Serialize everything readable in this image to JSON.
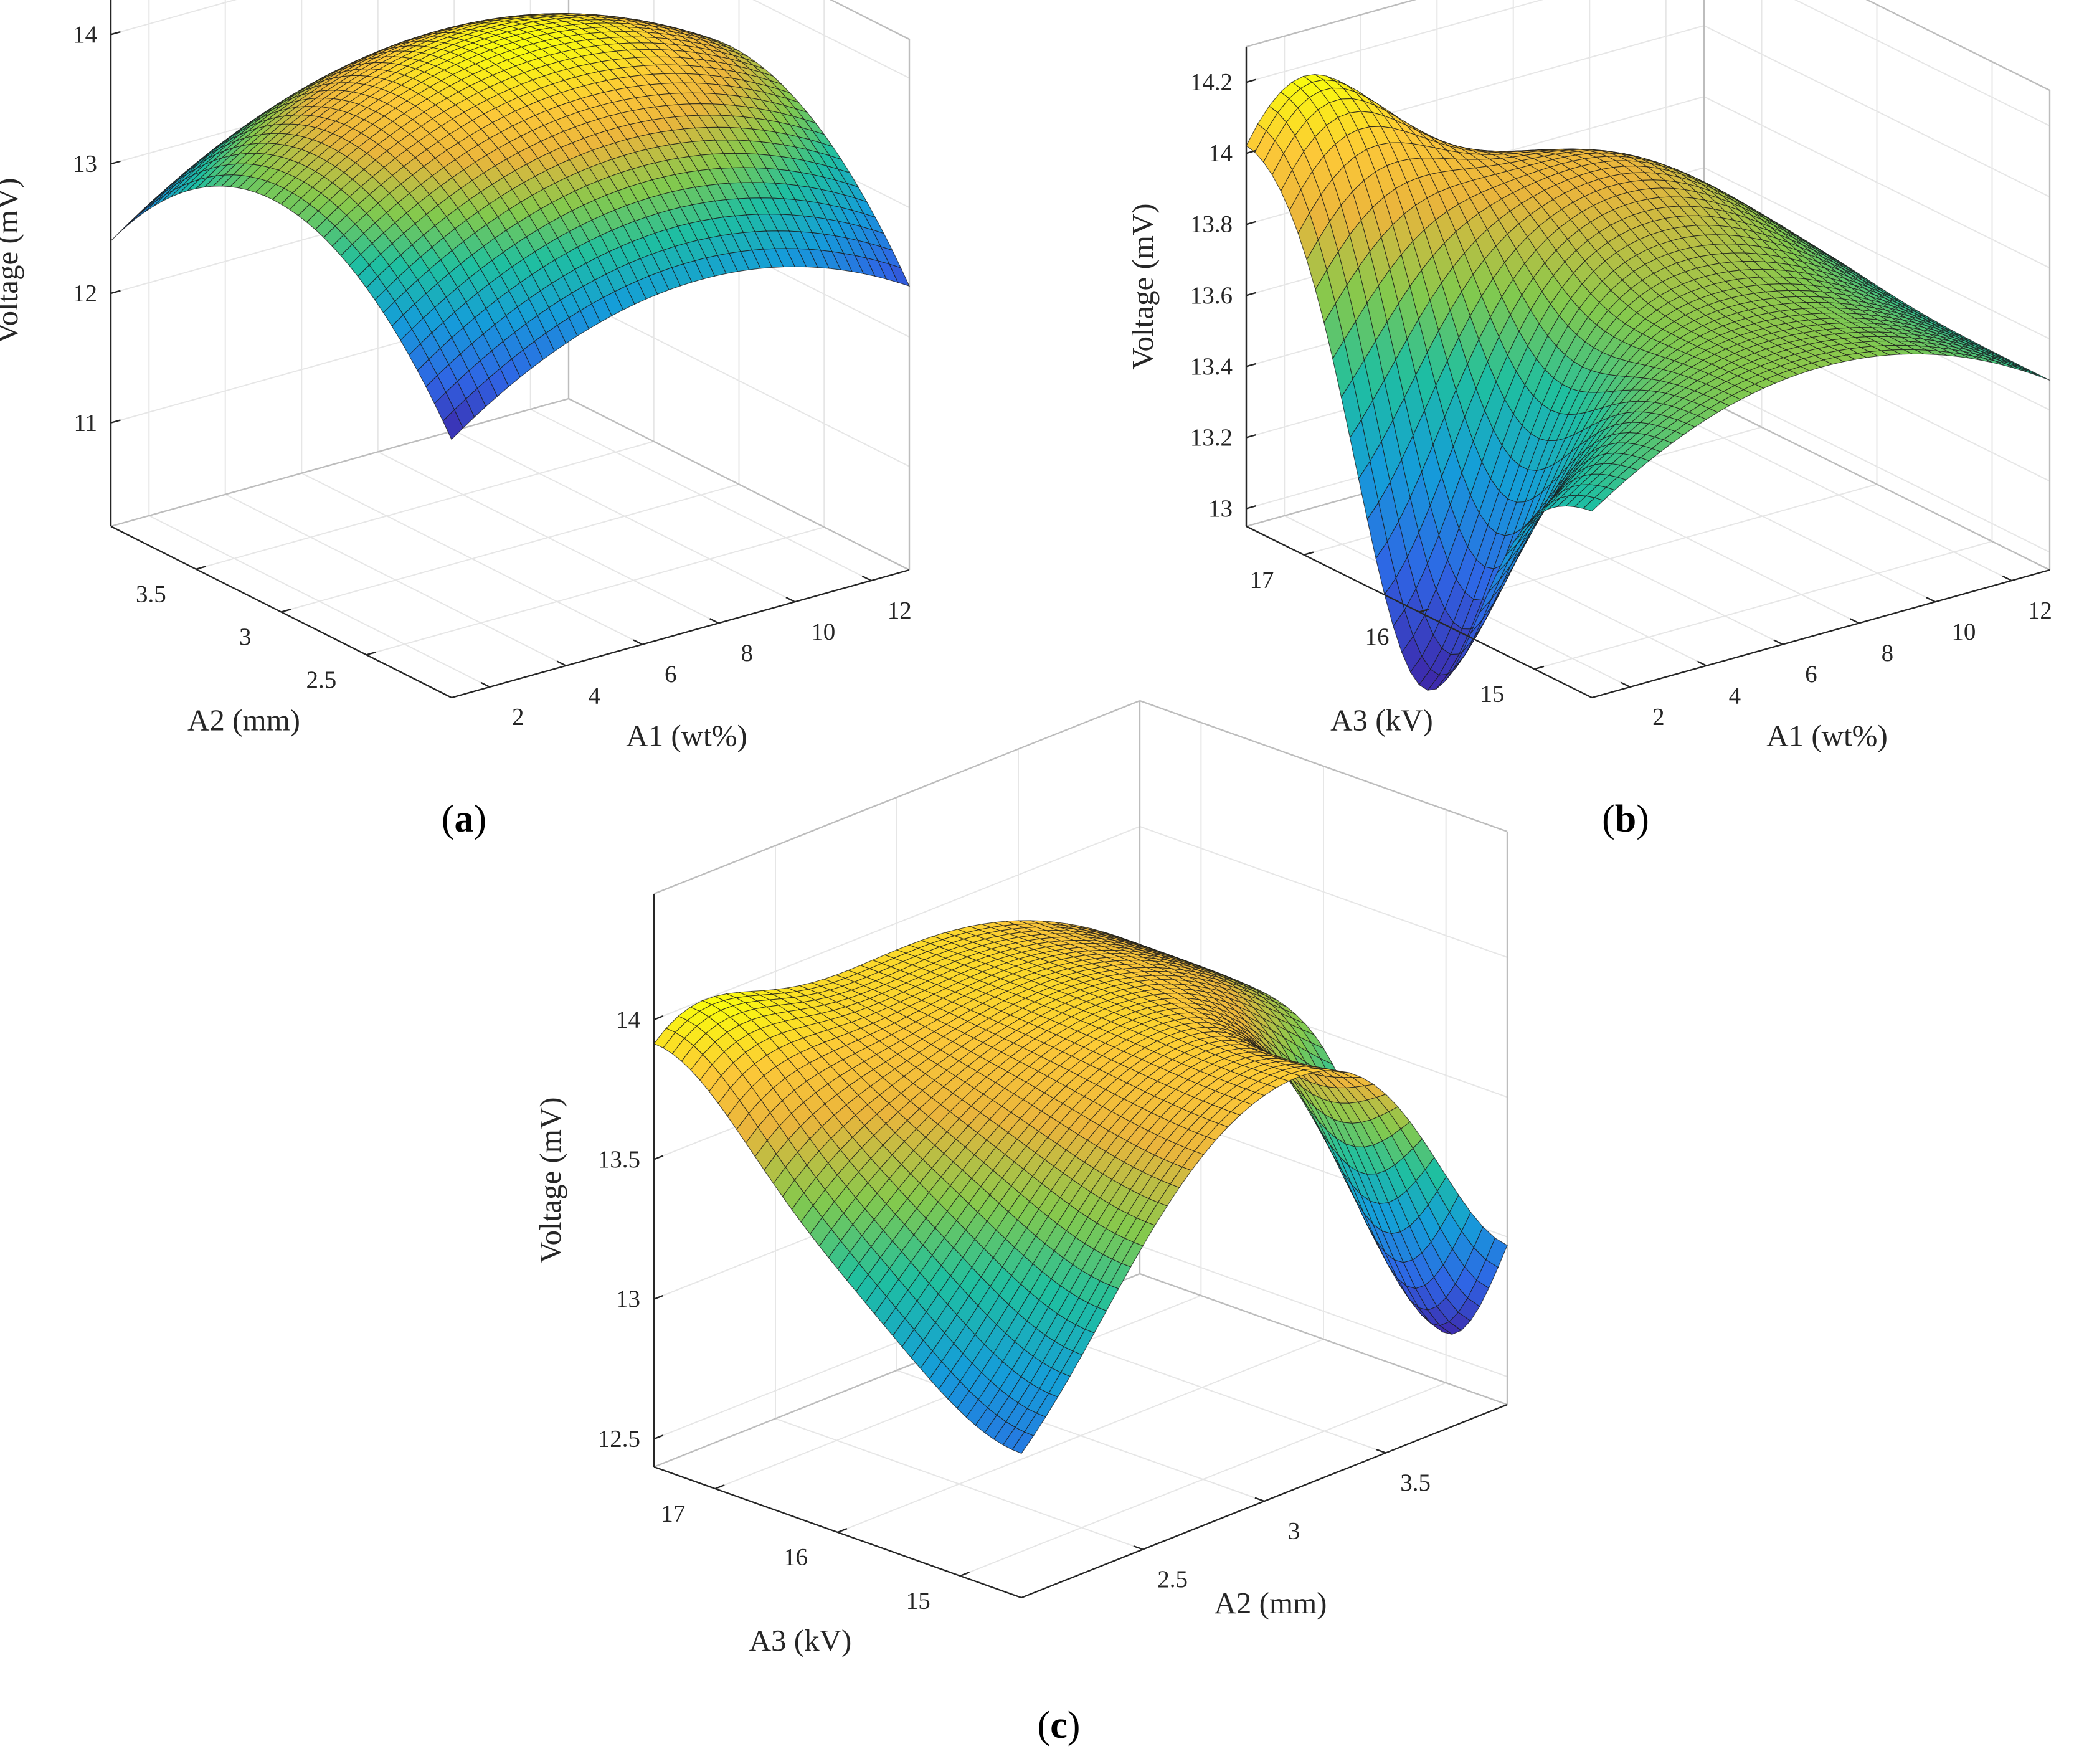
{
  "colors": {
    "low": "#3e26a8",
    "mid": "#1fbfa0",
    "high": "#f9fb0e",
    "gridline": "#e6e6e6",
    "axis": "#262626",
    "mesh": "#1a1a1a"
  },
  "chart_data": [
    {
      "type": "surface",
      "panel_label": "a",
      "xlabel": "A1 (wt%)",
      "ylabel": "A2 (mm)",
      "zlabel": "Voltage (mV)",
      "xlim": [
        1,
        13
      ],
      "ylim": [
        2,
        4
      ],
      "zlim": [
        10.2,
        14.3
      ],
      "xticks": [
        2,
        4,
        6,
        8,
        10,
        12
      ],
      "xticklabels": [
        "2",
        "4",
        "6",
        "8",
        "10",
        "12"
      ],
      "yticks": [
        2.5,
        3,
        3.5
      ],
      "yticklabels": [
        "2.5",
        "3",
        "3.5"
      ],
      "zticks": [
        11,
        12,
        13,
        14
      ],
      "zticklabels": [
        "11",
        "12",
        "13",
        "14"
      ],
      "model": {
        "c": 14.05,
        "ax": 0.0165,
        "x0": 7.5,
        "ay": 1.05,
        "y0": 3.05,
        "bumps": []
      }
    },
    {
      "type": "surface",
      "panel_label": "b",
      "xlabel": "A1 (wt%)",
      "ylabel": "A3 (kV)",
      "zlabel": "Voltage (mV)",
      "xlim": [
        1,
        13
      ],
      "ylim": [
        14.5,
        17.5
      ],
      "zlim": [
        12.95,
        14.3
      ],
      "xticks": [
        2,
        4,
        6,
        8,
        10,
        12
      ],
      "xticklabels": [
        "2",
        "4",
        "6",
        "8",
        "10",
        "12"
      ],
      "yticks": [
        15,
        16,
        17
      ],
      "yticklabels": [
        "15",
        "16",
        "17"
      ],
      "zticks": [
        13,
        13.2,
        13.4,
        13.6,
        13.8,
        14,
        14.2
      ],
      "zticklabels": [
        "13",
        "13.2",
        "13.4",
        "13.6",
        "13.8",
        "14",
        "14.2"
      ],
      "model": {
        "c": 13.7,
        "ax": 0.006,
        "x0": 7.0,
        "ay": 0.0,
        "y0": 16.0,
        "bumps": [
          {
            "a": 0.6,
            "x0": 2.0,
            "sx": 2.2,
            "y0": 17.5,
            "sy": 0.7
          },
          {
            "a": -0.8,
            "x0": 1.0,
            "sx": 2.0,
            "y0": 16.0,
            "sy": 0.5
          },
          {
            "a": 0.2,
            "x0": 8.0,
            "sx": 3.0,
            "y0": 16.7,
            "sy": 0.6
          }
        ]
      }
    },
    {
      "type": "surface",
      "panel_label": "c",
      "xlabel": "A2 (mm)",
      "ylabel": "A3 (kV)",
      "zlabel": "Voltage (mV)",
      "xlim": [
        2,
        4
      ],
      "ylim": [
        14.5,
        17.5
      ],
      "zlim": [
        12.4,
        14.45
      ],
      "xticks": [
        2.5,
        3,
        3.5
      ],
      "xticklabels": [
        "2.5",
        "3",
        "3.5"
      ],
      "yticks": [
        15,
        16,
        17
      ],
      "yticklabels": [
        "15",
        "16",
        "17"
      ],
      "zticks": [
        12.5,
        13,
        13.5,
        14
      ],
      "zticklabels": [
        "12.5",
        "13",
        "13.5",
        "14"
      ],
      "model": {
        "c": 13.9,
        "ax": 0.4,
        "x0": 3.1,
        "ay": 0.0,
        "y0": 16.0,
        "bumps": [
          {
            "a": 0.5,
            "x0": 2.0,
            "sx": 0.35,
            "y0": 17.5,
            "sy": 0.7
          },
          {
            "a": -1.0,
            "x0": 4.0,
            "sx": 0.3,
            "y0": 15.0,
            "sy": 0.5
          },
          {
            "a": -0.5,
            "x0": 2.0,
            "sx": 0.45,
            "y0": 14.5,
            "sy": 0.9
          }
        ]
      }
    }
  ]
}
